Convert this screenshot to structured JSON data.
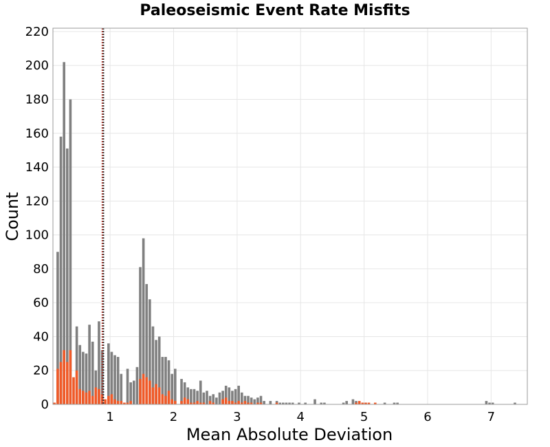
{
  "chart_data": {
    "type": "bar",
    "title": "Paleoseismic Event Rate Misfits",
    "xlabel": "Mean Absolute Deviation",
    "ylabel": "Count",
    "xlim": [
      0.1,
      7.57
    ],
    "ylim": [
      0,
      222
    ],
    "bin_width": 0.05,
    "xticks": [
      1,
      2,
      3,
      4,
      5,
      6,
      7
    ],
    "yticks": [
      0,
      20,
      40,
      60,
      80,
      100,
      120,
      140,
      160,
      180,
      200,
      220
    ],
    "grid": true,
    "series": [
      {
        "color": "#808080",
        "values": [
          0,
          90,
          158,
          202,
          151,
          180,
          0,
          46,
          35,
          31,
          30,
          47,
          37,
          20,
          49,
          32,
          0,
          36,
          31,
          29,
          28,
          18,
          0,
          21,
          13,
          14,
          22,
          81,
          98,
          71,
          62,
          46,
          38,
          40,
          28,
          28,
          26,
          18,
          21,
          0,
          15,
          13,
          10,
          9,
          9,
          8,
          14,
          7,
          8,
          5,
          6,
          4,
          7,
          8,
          11,
          10,
          8,
          9,
          11,
          7,
          5,
          5,
          4,
          3,
          4,
          5,
          2,
          0,
          2,
          0,
          2,
          1,
          1,
          1,
          1,
          1,
          0,
          1,
          0,
          1,
          0,
          0,
          3,
          0,
          1,
          1,
          0,
          0,
          0,
          0,
          0,
          1,
          2,
          0,
          3,
          2,
          1,
          1,
          1,
          0,
          0,
          0,
          0,
          0,
          1,
          0,
          0,
          1,
          1,
          0,
          0,
          0,
          0,
          0,
          0,
          0,
          0,
          0,
          0,
          0,
          0,
          0,
          0,
          0,
          0,
          0,
          0,
          0,
          0,
          0,
          0,
          0,
          0,
          0,
          0,
          0,
          2,
          1,
          1,
          0,
          0,
          0,
          0,
          0,
          0,
          1
        ]
      },
      {
        "color": "#f05a28",
        "values": [
          1,
          21,
          25,
          32,
          25,
          32,
          16,
          20,
          9,
          8,
          7,
          8,
          5,
          10,
          9,
          6,
          3,
          5,
          6,
          3,
          2,
          2,
          1,
          1,
          2,
          0,
          0,
          15,
          18,
          16,
          14,
          10,
          12,
          10,
          6,
          5,
          8,
          3,
          2,
          0,
          2,
          4,
          3,
          1,
          1,
          2,
          1,
          1,
          0,
          2,
          1,
          0,
          0,
          3,
          4,
          2,
          2,
          1,
          2,
          1,
          2,
          1,
          1,
          0,
          1,
          1,
          0,
          0,
          0,
          0,
          1,
          0,
          0,
          0,
          0,
          0,
          0,
          0,
          0,
          0,
          0,
          0,
          0,
          0,
          0,
          0,
          0,
          0,
          0,
          0,
          0,
          0,
          0,
          0,
          0,
          1,
          2,
          1,
          1,
          1,
          0,
          1,
          0,
          0,
          0,
          0,
          0,
          0,
          0,
          0,
          0,
          0,
          0,
          0,
          0,
          0,
          0,
          0,
          0,
          0,
          0,
          0,
          0,
          0,
          0,
          0,
          0,
          0,
          0,
          0,
          0,
          0,
          0,
          0,
          0,
          0,
          0,
          0,
          0,
          0,
          0,
          0,
          0,
          0,
          0,
          0,
          0,
          0,
          0,
          0
        ]
      }
    ],
    "reference_lines": [
      {
        "x": 0.878,
        "color": "#c0392b",
        "style": "dotted"
      },
      {
        "x": 0.895,
        "color": "#333333",
        "style": "dotted"
      }
    ]
  }
}
